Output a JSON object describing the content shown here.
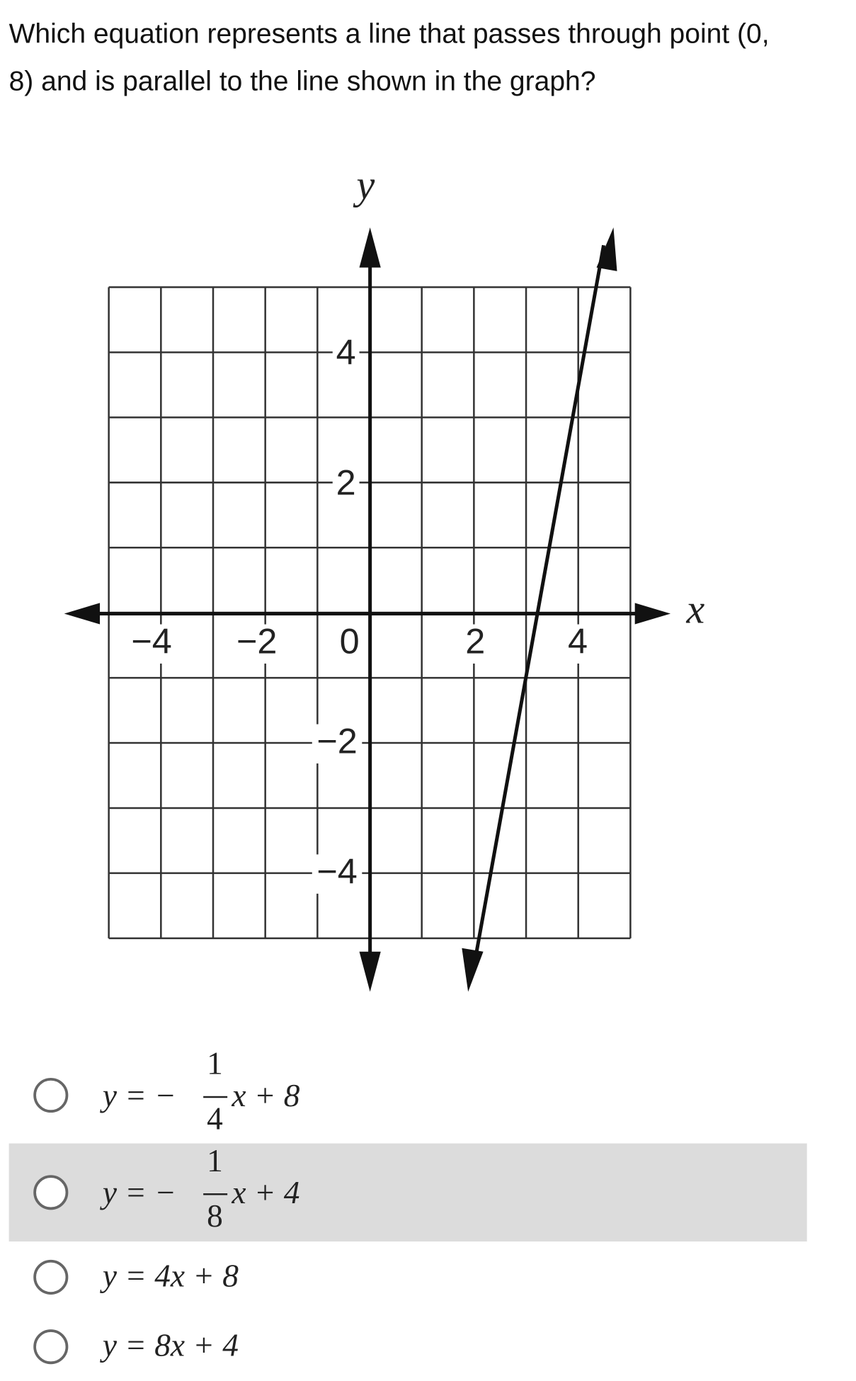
{
  "question_lines": [
    "Which equation represents a line that passes through point (0,",
    "8) and is parallel to the line shown in the graph?"
  ],
  "graph": {
    "x_label": "x",
    "y_label": "y",
    "x_tick_labels": [
      "−4",
      "−2",
      "0",
      "2",
      "4"
    ],
    "y_tick_labels": [
      "4",
      "2",
      "−2",
      "−4"
    ]
  },
  "options": [
    {
      "prefix": "y = −",
      "numerator": "1",
      "denominator": "4",
      "suffix": "x + 8"
    },
    {
      "prefix": "y = −",
      "numerator": "1",
      "denominator": "8",
      "suffix": "x + 4"
    },
    {
      "text": "y = 4x + 8"
    },
    {
      "text": "y = 8x + 4"
    }
  ]
}
